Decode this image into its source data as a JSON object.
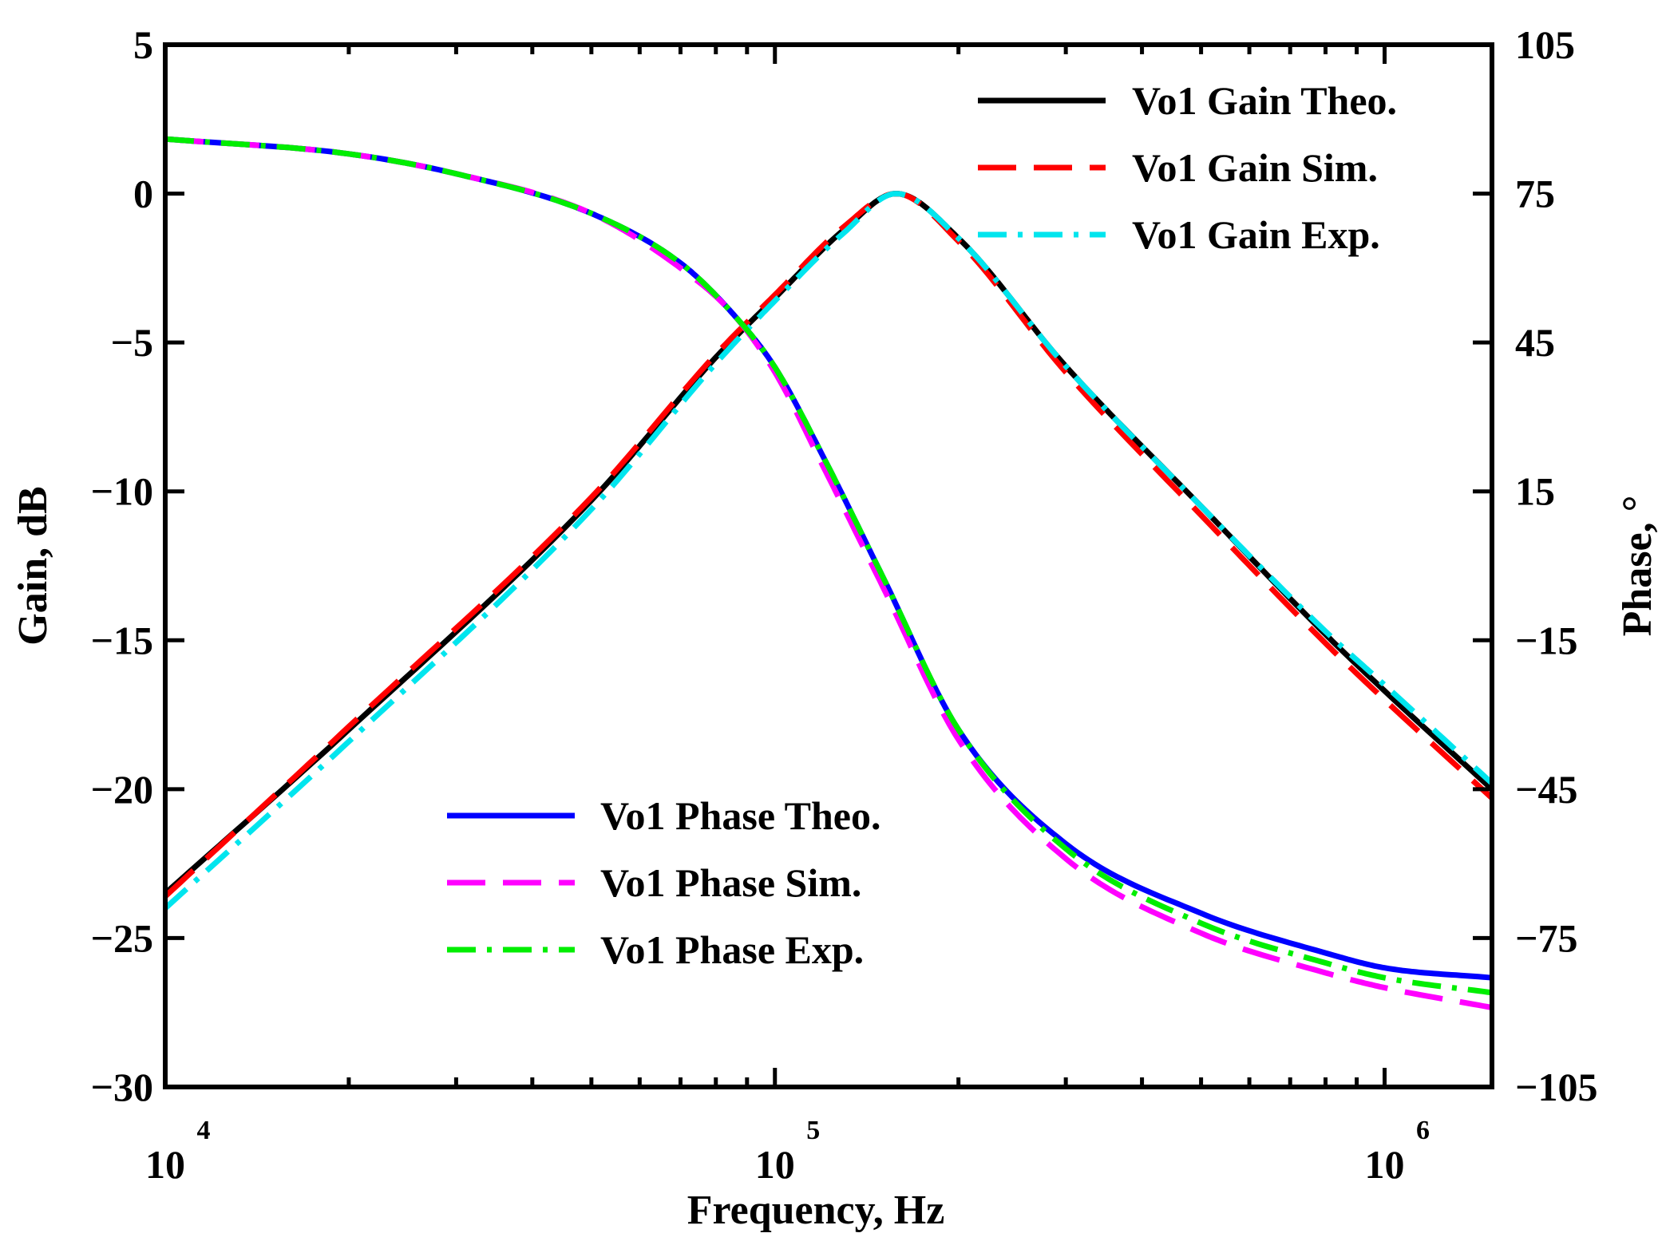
{
  "chart_data": {
    "type": "line",
    "xlabel": "Frequency, Hz",
    "ylabel": "Gain, dB",
    "y2label": "Phase, °",
    "xscale": "log",
    "xlim": [
      10000,
      1500000
    ],
    "ylim": [
      -30,
      5
    ],
    "y2lim": [
      -105,
      105
    ],
    "x_ticks": [
      {
        "value": 10000,
        "base": "10",
        "exp": "4"
      },
      {
        "value": 100000,
        "base": "10",
        "exp": "5"
      },
      {
        "value": 1000000,
        "base": "10",
        "exp": "6"
      }
    ],
    "y_ticks": [
      {
        "value": 5,
        "label": "5"
      },
      {
        "value": 0,
        "label": "0"
      },
      {
        "value": -5,
        "label": "−5"
      },
      {
        "value": -10,
        "label": "−10"
      },
      {
        "value": -15,
        "label": "−15"
      },
      {
        "value": -20,
        "label": "−20"
      },
      {
        "value": -25,
        "label": "−25"
      },
      {
        "value": -30,
        "label": "−30"
      }
    ],
    "y2_ticks": [
      {
        "value": 105,
        "label": "105"
      },
      {
        "value": 75,
        "label": "75"
      },
      {
        "value": 45,
        "label": "45"
      },
      {
        "value": 15,
        "label": "15"
      },
      {
        "value": -15,
        "label": "−15"
      },
      {
        "value": -45,
        "label": "−45"
      },
      {
        "value": -75,
        "label": "−75"
      },
      {
        "value": -105,
        "label": "−105"
      }
    ],
    "legends": [
      {
        "position": "top-right",
        "entries": [
          "gain_theo",
          "gain_sim",
          "gain_exp"
        ]
      },
      {
        "position": "bottom-center",
        "entries": [
          "phase_theo",
          "phase_sim",
          "phase_exp"
        ]
      }
    ],
    "series": [
      {
        "id": "gain_theo",
        "name": "Vo1 Gain Theo.",
        "axis": "left",
        "color": "#000000",
        "dash": "solid",
        "x": [
          10000,
          20000,
          50000,
          80000,
          100000,
          130000,
          158000,
          200000,
          300000,
          500000,
          800000,
          1000000,
          1500000
        ],
        "y": [
          -23.5,
          -18.0,
          -10.3,
          -5.5,
          -3.5,
          -1.2,
          0.0,
          -1.5,
          -5.8,
          -10.5,
          -14.8,
          -16.7,
          -20.0
        ]
      },
      {
        "id": "gain_sim",
        "name": "Vo1 Gain Sim.",
        "axis": "left",
        "color": "#ff0000",
        "dash": "long-dash",
        "x": [
          10000,
          20000,
          50000,
          80000,
          100000,
          130000,
          158000,
          200000,
          300000,
          500000,
          800000,
          1000000,
          1500000
        ],
        "y": [
          -23.6,
          -17.9,
          -10.2,
          -5.4,
          -3.4,
          -1.1,
          0.0,
          -1.6,
          -6.0,
          -10.8,
          -15.1,
          -17.0,
          -20.3
        ]
      },
      {
        "id": "gain_exp",
        "name": "Vo1 Gain Exp.",
        "axis": "left",
        "color": "#00e5ee",
        "dash": "dash-dot",
        "x": [
          10000,
          20000,
          50000,
          80000,
          100000,
          130000,
          158000,
          200000,
          300000,
          500000,
          800000,
          1000000,
          1500000
        ],
        "y": [
          -24.0,
          -18.4,
          -10.6,
          -5.7,
          -3.6,
          -1.3,
          0.0,
          -1.5,
          -5.8,
          -10.5,
          -14.7,
          -16.5,
          -19.8
        ]
      },
      {
        "id": "phase_theo",
        "name": "Vo1 Phase Theo.",
        "axis": "right",
        "color": "#0000ff",
        "dash": "solid",
        "x": [
          10000,
          20000,
          30000,
          50000,
          70000,
          85000,
          100000,
          120000,
          150000,
          200000,
          300000,
          500000,
          800000,
          1000000,
          1500000
        ],
        "y": [
          86.0,
          83.0,
          79.0,
          71.0,
          61.0,
          51.0,
          40.0,
          22.0,
          -2.0,
          -33.0,
          -56.0,
          -70.0,
          -78.0,
          -81.0,
          -83.0
        ]
      },
      {
        "id": "phase_sim",
        "name": "Vo1 Phase Sim.",
        "axis": "right",
        "color": "#ff00ff",
        "dash": "long-dash",
        "x": [
          10000,
          20000,
          30000,
          50000,
          70000,
          85000,
          100000,
          120000,
          150000,
          200000,
          300000,
          500000,
          800000,
          1000000,
          1500000
        ],
        "y": [
          86.0,
          83.0,
          79.0,
          71.0,
          60.0,
          51.0,
          39.0,
          20.0,
          -4.0,
          -35.0,
          -59.0,
          -74.0,
          -82.0,
          -85.0,
          -89.0
        ]
      },
      {
        "id": "phase_exp",
        "name": "Vo1 Phase Exp.",
        "axis": "right",
        "color": "#00ee00",
        "dash": "dash-dot",
        "x": [
          10000,
          20000,
          30000,
          50000,
          70000,
          85000,
          100000,
          120000,
          150000,
          200000,
          300000,
          500000,
          800000,
          1000000,
          1500000
        ],
        "y": [
          86.0,
          83.0,
          79.0,
          71.0,
          61.0,
          51.0,
          40.0,
          22.0,
          -2.0,
          -33.0,
          -57.0,
          -72.0,
          -80.0,
          -83.0,
          -86.0
        ]
      }
    ]
  }
}
